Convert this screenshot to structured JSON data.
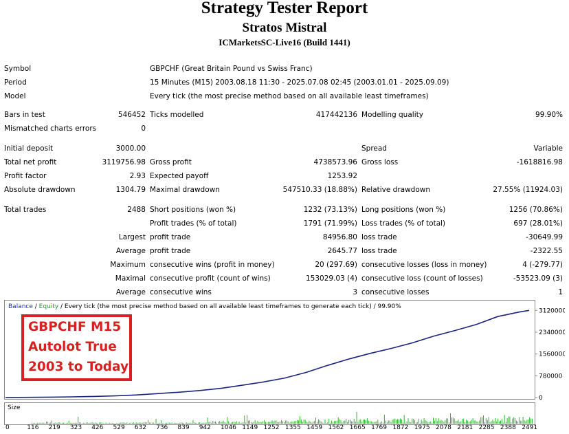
{
  "report": {
    "title": "Strategy Tester Report",
    "subtitle": "Stratos Mistral",
    "server": "ICMarketsSC-Live16 (Build 1441)"
  },
  "info": {
    "symbol_label": "Symbol",
    "symbol_value": "GBPCHF (Great Britain Pound vs Swiss Franc)",
    "period_label": "Period",
    "period_value": "15 Minutes (M15) 2003.08.18 11:30 - 2025.07.08 02:45 (2003.01.01 - 2025.09.09)",
    "model_label": "Model",
    "model_value": "Every tick (the most precise method based on all available least timeframes)"
  },
  "bars": {
    "bars_label": "Bars in test",
    "bars_value": "546452",
    "ticks_label": "Ticks modelled",
    "ticks_value": "417442136",
    "quality_label": "Modelling quality",
    "quality_value": "99.90%",
    "mismatch_label": "Mismatched charts errors",
    "mismatch_value": "0"
  },
  "results": {
    "deposit_label": "Initial deposit",
    "deposit_value": "3000.00",
    "spread_label": "Spread",
    "spread_value": "Variable",
    "net_label": "Total net profit",
    "net_value": "3119756.98",
    "gross_profit_label": "Gross profit",
    "gross_profit_value": "4738573.96",
    "gross_loss_label": "Gross loss",
    "gross_loss_value": "-1618816.98",
    "pf_label": "Profit factor",
    "pf_value": "2.93",
    "ep_label": "Expected payoff",
    "ep_value": "1253.92",
    "abs_dd_label": "Absolute drawdown",
    "abs_dd_value": "1304.79",
    "max_dd_label": "Maximal drawdown",
    "max_dd_value": "547510.33 (18.88%)",
    "rel_dd_label": "Relative drawdown",
    "rel_dd_value": "27.55% (11924.03)"
  },
  "trades": {
    "total_label": "Total trades",
    "total_value": "2488",
    "short_label": "Short positions (won %)",
    "short_value": "1232 (73.13%)",
    "long_label": "Long positions (won %)",
    "long_value": "1256 (70.86%)",
    "pt_label": "Profit trades (% of total)",
    "pt_value": "1791 (71.99%)",
    "lt_label": "Loss trades (% of total)",
    "lt_value": "697 (28.01%)",
    "largest": "Largest",
    "largest_pt_label": "profit trade",
    "largest_pt_value": "84956.80",
    "largest_lt_label": "loss trade",
    "largest_lt_value": "-30649.99",
    "average": "Average",
    "avg_pt_label": "profit trade",
    "avg_pt_value": "2645.77",
    "avg_lt_label": "loss trade",
    "avg_lt_value": "-2322.55",
    "maximum": "Maximum",
    "max_cw_label": "consecutive wins (profit in money)",
    "max_cw_value": "20 (297.69)",
    "max_cl_label": "consecutive losses (loss in money)",
    "max_cl_value": "4 (-279.77)",
    "maximal": "Maximal",
    "mxl_cp_label": "consecutive profit (count of wins)",
    "mxl_cp_value": "153029.03 (4)",
    "mxl_cl_label": "consecutive loss (count of losses)",
    "mxl_cl_value": "-53523.09 (3)",
    "average2": "Average",
    "avg_cw_label": "consecutive wins",
    "avg_cw_value": "3",
    "avg_cl_label": "consecutive losses",
    "avg_cl_value": "1"
  },
  "chart_legend": {
    "balance": "Balance",
    "sep": " / ",
    "equity": "Equity",
    "rest": " / Every tick (the most precise method based on all available least timeframes to generate each tick) / 99.90%"
  },
  "callout": {
    "line1": "GBPCHF M15",
    "line2": "Autolot True",
    "line3": "2003 to Today"
  },
  "size_label": "Size",
  "chart_data": {
    "type": "line",
    "title": "",
    "xlabel": "",
    "ylabel": "",
    "x_ticks": [
      "0",
      "116",
      "219",
      "323",
      "426",
      "529",
      "632",
      "736",
      "839",
      "942",
      "1046",
      "1149",
      "1252",
      "1355",
      "1459",
      "1562",
      "1665",
      "1769",
      "1872",
      "1975",
      "2078",
      "2181",
      "2285",
      "2388",
      "2491"
    ],
    "y_ticks": [
      "3120000",
      "2340000",
      "1560000",
      "780000",
      "0"
    ],
    "ylim": [
      0,
      3250000
    ],
    "xlim": [
      0,
      2560
    ],
    "series": [
      {
        "color": "#1a237e",
        "x": [
          0,
          116,
          219,
          323,
          426,
          529,
          632,
          736,
          839,
          942,
          1046,
          1149,
          1252,
          1355,
          1459,
          1562,
          1665,
          1769,
          1872,
          1975,
          2078,
          2181,
          2285,
          2388,
          2491,
          2540
        ],
        "y": [
          3000,
          8000,
          15000,
          25000,
          40000,
          60000,
          90000,
          140000,
          190000,
          250000,
          330000,
          440000,
          560000,
          700000,
          900000,
          1150000,
          1380000,
          1580000,
          1760000,
          1960000,
          2200000,
          2400000,
          2620000,
          2900000,
          3060000,
          3120000
        ]
      }
    ],
    "volume": {
      "color": "#2bb52b",
      "description_free": true
    }
  }
}
